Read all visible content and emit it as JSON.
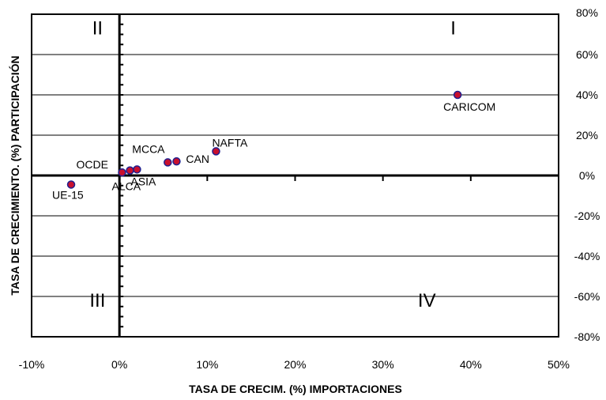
{
  "chart_data": {
    "type": "scatter",
    "title": "",
    "xlabel": "TASA DE CRECIM. (%) IMPORTACIONES",
    "ylabel": "TASA DE CRECIMIENTO. (%) PARTICIPACIÓN",
    "xlim": [
      -10,
      50
    ],
    "ylim": [
      -80,
      80
    ],
    "x_ticks": [
      -10,
      0,
      10,
      20,
      30,
      40,
      50
    ],
    "y_ticks": [
      -80,
      -60,
      -40,
      -20,
      0,
      20,
      40,
      60,
      80
    ],
    "x_tick_labels": [
      "-10%",
      "0%",
      "10%",
      "20%",
      "30%",
      "40%",
      "50%"
    ],
    "y_tick_labels": [
      "-80%",
      "-60%",
      "-40%",
      "-20%",
      "0%",
      "20%",
      "40%",
      "60%",
      "80%"
    ],
    "grid": "horizontal",
    "y_axis_side": "right",
    "point_color": "#c8102e",
    "point_border": "#1f1f8f",
    "points": [
      {
        "label": "CARICOM",
        "x": 38.5,
        "y": 40
      },
      {
        "label": "NAFTA",
        "x": 11,
        "y": 12
      },
      {
        "label": "CAN",
        "x": 6.5,
        "y": 7
      },
      {
        "label": "MCCA",
        "x": 5.5,
        "y": 6.5
      },
      {
        "label": "ASIA",
        "x": 2,
        "y": 3
      },
      {
        "label": "ALCA",
        "x": 1.2,
        "y": 2.5
      },
      {
        "label": "OCDE",
        "x": 0.3,
        "y": 1.5
      },
      {
        "label": "UE-15",
        "x": -5.5,
        "y": -4.5
      }
    ],
    "quadrants": [
      {
        "label": "I",
        "x": 38,
        "y": 70
      },
      {
        "label": "II",
        "x": -2.5,
        "y": 70
      },
      {
        "label": "III",
        "x": -2.5,
        "y": -65
      },
      {
        "label": "IV",
        "x": 35,
        "y": -65
      }
    ]
  }
}
